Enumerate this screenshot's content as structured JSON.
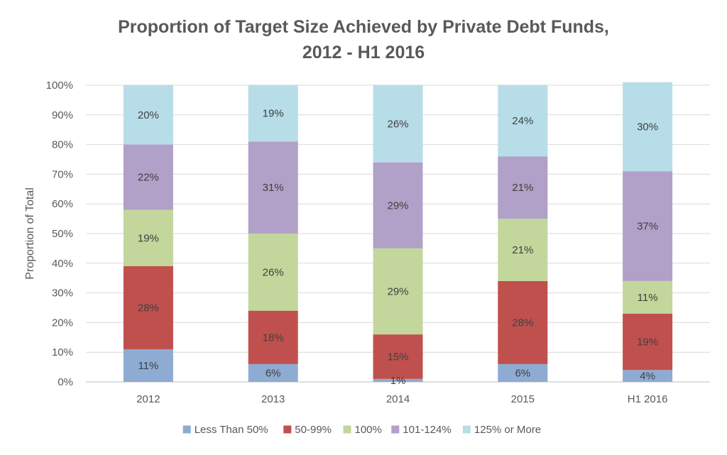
{
  "chart_data": {
    "type": "bar",
    "stacked": true,
    "title_line1": "Proportion of Target Size Achieved by Private Debt Funds,",
    "title_line2": "2012 - H1 2016",
    "xlabel": "",
    "ylabel": "Proportion of Total",
    "ylim": [
      0,
      100
    ],
    "yticks": [
      "0%",
      "10%",
      "20%",
      "30%",
      "40%",
      "50%",
      "60%",
      "70%",
      "80%",
      "90%",
      "100%"
    ],
    "grid": true,
    "legend_position": "bottom",
    "categories": [
      "2012",
      "2013",
      "2014",
      "2015",
      "H1 2016"
    ],
    "series": [
      {
        "name": "Less Than 50%",
        "color": "#8eabd3",
        "values": [
          11,
          6,
          1,
          6,
          4
        ],
        "labels": [
          "11%",
          "6%",
          "1%",
          "6%",
          "4%"
        ]
      },
      {
        "name": "50-99%",
        "color": "#c0504d",
        "values": [
          28,
          18,
          15,
          28,
          19
        ],
        "labels": [
          "28%",
          "18%",
          "15%",
          "28%",
          "19%"
        ]
      },
      {
        "name": "100%",
        "color": "#c3d69b",
        "values": [
          19,
          26,
          29,
          21,
          11
        ],
        "labels": [
          "19%",
          "26%",
          "29%",
          "21%",
          "11%"
        ]
      },
      {
        "name": "101-124%",
        "color": "#b1a0c7",
        "values": [
          22,
          31,
          29,
          21,
          37
        ],
        "labels": [
          "22%",
          "31%",
          "29%",
          "21%",
          "37%"
        ]
      },
      {
        "name": "125% or More",
        "color": "#b7dde8",
        "values": [
          20,
          19,
          26,
          24,
          30
        ],
        "labels": [
          "20%",
          "19%",
          "26%",
          "24%",
          "30%"
        ]
      }
    ]
  }
}
